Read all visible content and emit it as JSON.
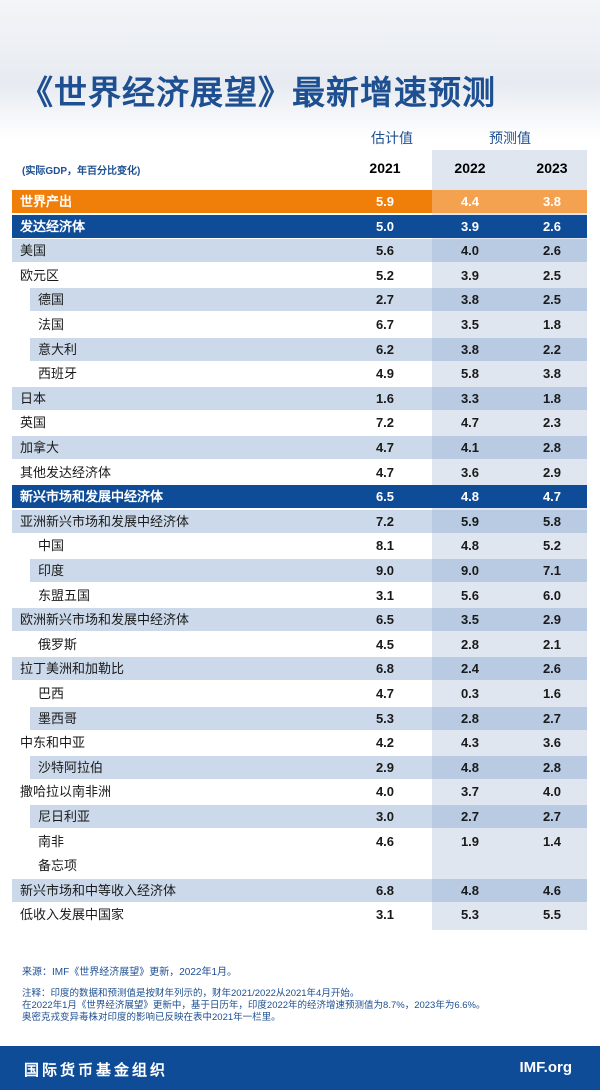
{
  "header": {
    "title": "《世界经济展望》最新增速预测",
    "estimate_label": "估计值",
    "forecast_label": "预测值",
    "unit_note": "(实际GDP，年百分比变化)",
    "years": [
      "2021",
      "2022",
      "2023"
    ]
  },
  "table": {
    "rows": [
      {
        "label": "世界产出",
        "values": [
          "5.9",
          "4.4",
          "3.8"
        ],
        "shade": "orange",
        "indent": false
      },
      {
        "label": "发达经济体",
        "values": [
          "5.0",
          "3.9",
          "2.6"
        ],
        "shade": "dark",
        "indent": false
      },
      {
        "label": "美国",
        "values": [
          "5.6",
          "4.0",
          "2.6"
        ],
        "shade": "light",
        "indent": false
      },
      {
        "label": "欧元区",
        "values": [
          "5.2",
          "3.9",
          "2.5"
        ],
        "shade": "white",
        "indent": false
      },
      {
        "label": "德国",
        "values": [
          "2.7",
          "3.8",
          "2.5"
        ],
        "shade": "light",
        "indent": true
      },
      {
        "label": "法国",
        "values": [
          "6.7",
          "3.5",
          "1.8"
        ],
        "shade": "white",
        "indent": true
      },
      {
        "label": "意大利",
        "values": [
          "6.2",
          "3.8",
          "2.2"
        ],
        "shade": "light",
        "indent": true
      },
      {
        "label": "西班牙",
        "values": [
          "4.9",
          "5.8",
          "3.8"
        ],
        "shade": "white",
        "indent": true
      },
      {
        "label": "日本",
        "values": [
          "1.6",
          "3.3",
          "1.8"
        ],
        "shade": "light",
        "indent": false
      },
      {
        "label": "英国",
        "values": [
          "7.2",
          "4.7",
          "2.3"
        ],
        "shade": "white",
        "indent": false
      },
      {
        "label": "加拿大",
        "values": [
          "4.7",
          "4.1",
          "2.8"
        ],
        "shade": "light",
        "indent": false
      },
      {
        "label": "其他发达经济体",
        "values": [
          "4.7",
          "3.6",
          "2.9"
        ],
        "shade": "white",
        "indent": false
      },
      {
        "label": "新兴市场和发展中经济体",
        "values": [
          "6.5",
          "4.8",
          "4.7"
        ],
        "shade": "dark",
        "indent": false
      },
      {
        "label": "亚洲新兴市场和发展中经济体",
        "values": [
          "7.2",
          "5.9",
          "5.8"
        ],
        "shade": "light",
        "indent": false
      },
      {
        "label": "中国",
        "values": [
          "8.1",
          "4.8",
          "5.2"
        ],
        "shade": "white",
        "indent": true
      },
      {
        "label": "印度",
        "values": [
          "9.0",
          "9.0",
          "7.1"
        ],
        "shade": "light",
        "indent": true
      },
      {
        "label": "东盟五国",
        "values": [
          "3.1",
          "5.6",
          "6.0"
        ],
        "shade": "white",
        "indent": true
      },
      {
        "label": "欧洲新兴市场和发展中经济体",
        "values": [
          "6.5",
          "3.5",
          "2.9"
        ],
        "shade": "light",
        "indent": false
      },
      {
        "label": "俄罗斯",
        "values": [
          "4.5",
          "2.8",
          "2.1"
        ],
        "shade": "white",
        "indent": true
      },
      {
        "label": "拉丁美洲和加勒比",
        "values": [
          "6.8",
          "2.4",
          "2.6"
        ],
        "shade": "light",
        "indent": false
      },
      {
        "label": "巴西",
        "values": [
          "4.7",
          "0.3",
          "1.6"
        ],
        "shade": "white",
        "indent": true
      },
      {
        "label": "墨西哥",
        "values": [
          "5.3",
          "2.8",
          "2.7"
        ],
        "shade": "light",
        "indent": true
      },
      {
        "label": "中东和中亚",
        "values": [
          "4.2",
          "4.3",
          "3.6"
        ],
        "shade": "white",
        "indent": false
      },
      {
        "label": "沙特阿拉伯",
        "values": [
          "2.9",
          "4.8",
          "2.8"
        ],
        "shade": "light",
        "indent": true
      },
      {
        "label": "撒哈拉以南非洲",
        "values": [
          "4.0",
          "3.7",
          "4.0"
        ],
        "shade": "white",
        "indent": false
      },
      {
        "label": "尼日利亚",
        "values": [
          "3.0",
          "2.7",
          "2.7"
        ],
        "shade": "light",
        "indent": true
      },
      {
        "label": "南非",
        "values": [
          "4.6",
          "1.9",
          "1.4"
        ],
        "shade": "white",
        "indent": true
      },
      {
        "label": "备忘项",
        "shade": "white",
        "indent": true
      },
      {
        "label": "新兴市场和中等收入经济体",
        "values": [
          "6.8",
          "4.8",
          "4.6"
        ],
        "shade": "light",
        "indent": false
      },
      {
        "label": "低收入发展中国家",
        "values": [
          "3.1",
          "5.3",
          "5.5"
        ],
        "shade": "white",
        "indent": false
      }
    ]
  },
  "footer": {
    "source": "来源：IMF《世界经济展望》更新，2022年1月。",
    "notes": [
      "注释：印度的数据和预测值是按财年列示的，财年2021/2022从2021年4月开始。",
      "在2022年1月《世界经济展望》更新中，基于日历年，印度2022年的经济增速预测值为8.7%，2023年为6.6%。",
      "奥密克戎变异毒株对印度的影响已反映在表中2021年一栏里。"
    ],
    "org": "国际货币基金组织",
    "site": "IMF.org"
  }
}
